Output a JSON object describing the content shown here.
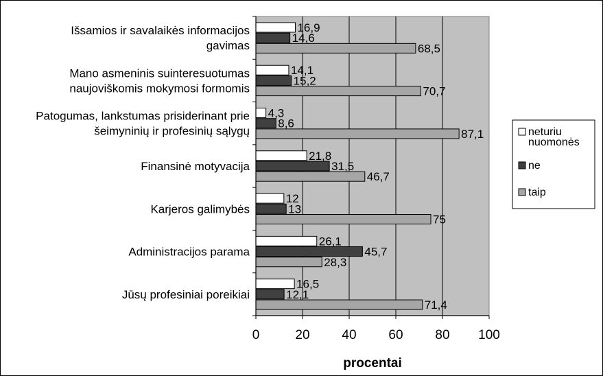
{
  "chart_data": {
    "type": "bar",
    "orientation": "horizontal",
    "title": "",
    "xlabel": "procentai",
    "ylabel": "",
    "xlim": [
      0,
      100
    ],
    "x_ticks": [
      "0",
      "20",
      "40",
      "60",
      "80",
      "100"
    ],
    "grid": true,
    "legend_position": "right",
    "categories": [
      [
        "Išsamios ir savalaikės informacijos",
        "gavimas"
      ],
      [
        "Mano asmeninis suinteresuotumas",
        "naujoviškomis mokymosi formomis"
      ],
      [
        "Patogumas, lankstumas prisiderinant prie",
        "šeimyninių ir profesinių sąlygų"
      ],
      [
        "Finansinė motyvacija"
      ],
      [
        "Karjeros galimybės"
      ],
      [
        "Administracijos parama"
      ],
      [
        "Jūsų profesiniai poreikiai"
      ]
    ],
    "series": [
      {
        "name": "neturiu nuomonės",
        "legend_lines": [
          "neturiu",
          "nuomonės"
        ],
        "color": "#ffffff",
        "values": [
          16.9,
          14.1,
          4.3,
          21.8,
          12,
          26.1,
          16.5
        ],
        "labels": [
          "16,9",
          "14,1",
          "4,3",
          "21,8",
          "12",
          "26,1",
          "16,5"
        ]
      },
      {
        "name": "ne",
        "legend_lines": [
          "ne"
        ],
        "color": "#404040",
        "values": [
          14.6,
          15.2,
          8.6,
          31.5,
          13,
          45.7,
          12.1
        ],
        "labels": [
          "14,6",
          "15,2",
          "8,6",
          "31,5",
          "13",
          "45,7",
          "12,1"
        ]
      },
      {
        "name": "taip",
        "legend_lines": [
          "taip"
        ],
        "color": "#a6a6a6",
        "values": [
          68.5,
          70.7,
          87.1,
          46.7,
          75,
          28.3,
          71.4
        ],
        "labels": [
          "68,5",
          "70,7",
          "87,1",
          "46,7",
          "75",
          "28,3",
          "71,4"
        ]
      }
    ],
    "plot_background": "#c0c0c0"
  }
}
